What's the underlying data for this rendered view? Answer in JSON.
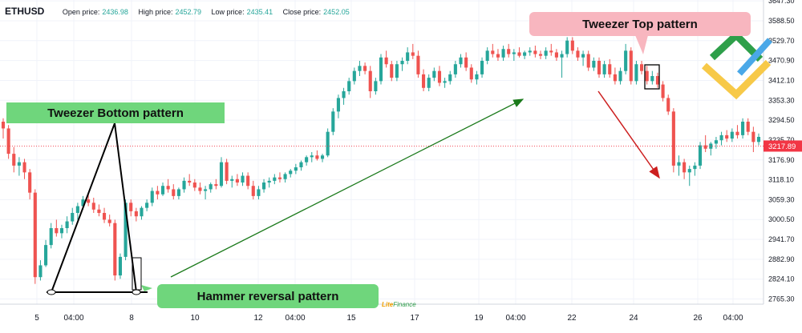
{
  "header": {
    "symbol": "ETHUSD",
    "open_label": "Open price:",
    "open_value": "2436.98",
    "high_label": "High price:",
    "high_value": "2452.79",
    "low_label": "Low price:",
    "low_value": "2435.41",
    "close_label": "Close price:",
    "close_value": "2452.05"
  },
  "callouts": {
    "tweezer_bottom": "Tweezer Bottom pattern",
    "hammer": "Hammer reversal pattern",
    "tweezer_top": "Tweezer Top pattern"
  },
  "brand": {
    "part1": "Lite",
    "part2": "Finance"
  },
  "colors": {
    "up": "#26a69a",
    "down": "#ef5350",
    "current_price_bg": "#f23645",
    "arrow_up": "#1b7a1b",
    "arrow_down": "#cc1f1f"
  },
  "chart_data": {
    "type": "candlestick",
    "ylim": [
      2750,
      3650
    ],
    "y_ticks": [
      "3647.30",
      "3588.50",
      "3529.70",
      "3470.90",
      "3412.10",
      "3353.30",
      "3294.50",
      "3235.70",
      "3176.90",
      "3118.10",
      "3059.30",
      "3000.50",
      "2941.70",
      "2882.90",
      "2824.10",
      "2765.30"
    ],
    "x_ticks": [
      "5",
      "04:00",
      "8",
      "10",
      "12",
      "04:00",
      "15",
      "17",
      "19",
      "04:00",
      "22",
      "24",
      "26",
      "04:00"
    ],
    "current_price": "3217.89",
    "candles": [
      [
        3290,
        3300,
        3240,
        3270
      ],
      [
        3270,
        3280,
        3180,
        3195
      ],
      [
        3195,
        3215,
        3140,
        3160
      ],
      [
        3160,
        3185,
        3130,
        3170
      ],
      [
        3170,
        3180,
        3120,
        3140
      ],
      [
        3140,
        3150,
        3060,
        3080
      ],
      [
        3080,
        3090,
        2810,
        2830
      ],
      [
        2830,
        2880,
        2820,
        2865
      ],
      [
        2865,
        2940,
        2860,
        2925
      ],
      [
        2925,
        2990,
        2915,
        2975
      ],
      [
        2975,
        3000,
        2950,
        2960
      ],
      [
        2960,
        2985,
        2945,
        2975
      ],
      [
        2975,
        3010,
        2960,
        2995
      ],
      [
        2995,
        3035,
        2985,
        3020
      ],
      [
        3020,
        3050,
        3000,
        3040
      ],
      [
        3040,
        3070,
        3030,
        3060
      ],
      [
        3060,
        3080,
        3040,
        3050
      ],
      [
        3050,
        3065,
        3020,
        3030
      ],
      [
        3030,
        3045,
        3010,
        3020
      ],
      [
        3020,
        3035,
        2990,
        3000
      ],
      [
        3000,
        3015,
        2980,
        2990
      ],
      [
        2990,
        3000,
        2820,
        2835
      ],
      [
        2835,
        2900,
        2825,
        2890
      ],
      [
        2890,
        3060,
        2880,
        3050
      ],
      [
        3050,
        3060,
        3010,
        3025
      ],
      [
        3025,
        3035,
        2995,
        3010
      ],
      [
        3010,
        3040,
        3000,
        3035
      ],
      [
        3035,
        3060,
        3025,
        3050
      ],
      [
        3050,
        3095,
        3040,
        3085
      ],
      [
        3085,
        3100,
        3060,
        3075
      ],
      [
        3075,
        3110,
        3070,
        3100
      ],
      [
        3100,
        3120,
        3080,
        3090
      ],
      [
        3090,
        3105,
        3060,
        3070
      ],
      [
        3070,
        3095,
        3060,
        3090
      ],
      [
        3090,
        3125,
        3080,
        3115
      ],
      [
        3115,
        3135,
        3100,
        3110
      ],
      [
        3110,
        3120,
        3085,
        3095
      ],
      [
        3095,
        3110,
        3075,
        3085
      ],
      [
        3085,
        3100,
        3060,
        3090
      ],
      [
        3090,
        3110,
        3080,
        3105
      ],
      [
        3105,
        3120,
        3090,
        3100
      ],
      [
        3100,
        3185,
        3095,
        3170
      ],
      [
        3170,
        3180,
        3105,
        3115
      ],
      [
        3115,
        3130,
        3095,
        3120
      ],
      [
        3120,
        3135,
        3100,
        3110
      ],
      [
        3110,
        3140,
        3100,
        3130
      ],
      [
        3130,
        3140,
        3090,
        3100
      ],
      [
        3100,
        3115,
        3060,
        3070
      ],
      [
        3070,
        3100,
        3060,
        3090
      ],
      [
        3090,
        3120,
        3080,
        3110
      ],
      [
        3110,
        3125,
        3095,
        3115
      ],
      [
        3115,
        3135,
        3105,
        3125
      ],
      [
        3125,
        3140,
        3110,
        3120
      ],
      [
        3120,
        3140,
        3110,
        3135
      ],
      [
        3135,
        3150,
        3125,
        3145
      ],
      [
        3145,
        3165,
        3135,
        3155
      ],
      [
        3155,
        3175,
        3145,
        3170
      ],
      [
        3170,
        3190,
        3160,
        3185
      ],
      [
        3185,
        3200,
        3170,
        3190
      ],
      [
        3190,
        3205,
        3175,
        3180
      ],
      [
        3180,
        3195,
        3170,
        3190
      ],
      [
        3190,
        3270,
        3185,
        3260
      ],
      [
        3260,
        3330,
        3250,
        3320
      ],
      [
        3320,
        3370,
        3300,
        3360
      ],
      [
        3360,
        3390,
        3340,
        3380
      ],
      [
        3380,
        3420,
        3370,
        3410
      ],
      [
        3410,
        3450,
        3400,
        3440
      ],
      [
        3440,
        3470,
        3425,
        3455
      ],
      [
        3455,
        3465,
        3430,
        3440
      ],
      [
        3440,
        3455,
        3360,
        3380
      ],
      [
        3380,
        3420,
        3370,
        3410
      ],
      [
        3410,
        3490,
        3400,
        3480
      ],
      [
        3480,
        3500,
        3450,
        3460
      ],
      [
        3460,
        3470,
        3410,
        3420
      ],
      [
        3420,
        3470,
        3410,
        3460
      ],
      [
        3460,
        3480,
        3440,
        3470
      ],
      [
        3470,
        3510,
        3460,
        3495
      ],
      [
        3495,
        3520,
        3475,
        3485
      ],
      [
        3485,
        3500,
        3420,
        3430
      ],
      [
        3430,
        3445,
        3380,
        3390
      ],
      [
        3390,
        3430,
        3380,
        3420
      ],
      [
        3420,
        3450,
        3410,
        3440
      ],
      [
        3440,
        3455,
        3395,
        3405
      ],
      [
        3405,
        3420,
        3390,
        3410
      ],
      [
        3410,
        3440,
        3400,
        3430
      ],
      [
        3430,
        3470,
        3420,
        3460
      ],
      [
        3460,
        3490,
        3450,
        3480
      ],
      [
        3480,
        3495,
        3440,
        3450
      ],
      [
        3450,
        3460,
        3405,
        3415
      ],
      [
        3415,
        3440,
        3400,
        3430
      ],
      [
        3430,
        3480,
        3420,
        3470
      ],
      [
        3470,
        3510,
        3460,
        3500
      ],
      [
        3500,
        3520,
        3480,
        3490
      ],
      [
        3490,
        3505,
        3470,
        3480
      ],
      [
        3480,
        3515,
        3470,
        3505
      ],
      [
        3505,
        3520,
        3480,
        3490
      ],
      [
        3490,
        3505,
        3470,
        3495
      ],
      [
        3495,
        3510,
        3480,
        3485
      ],
      [
        3485,
        3500,
        3475,
        3495
      ],
      [
        3495,
        3510,
        3485,
        3500
      ],
      [
        3500,
        3515,
        3480,
        3490
      ],
      [
        3490,
        3500,
        3475,
        3485
      ],
      [
        3485,
        3510,
        3475,
        3500
      ],
      [
        3500,
        3520,
        3485,
        3495
      ],
      [
        3495,
        3505,
        3470,
        3480
      ],
      [
        3480,
        3500,
        3420,
        3490
      ],
      [
        3490,
        3540,
        3480,
        3530
      ],
      [
        3530,
        3540,
        3490,
        3500
      ],
      [
        3500,
        3510,
        3470,
        3480
      ],
      [
        3480,
        3500,
        3455,
        3490
      ],
      [
        3490,
        3500,
        3440,
        3450
      ],
      [
        3450,
        3480,
        3440,
        3470
      ],
      [
        3470,
        3480,
        3420,
        3430
      ],
      [
        3430,
        3470,
        3420,
        3460
      ],
      [
        3460,
        3475,
        3420,
        3430
      ],
      [
        3430,
        3450,
        3400,
        3410
      ],
      [
        3410,
        3450,
        3400,
        3440
      ],
      [
        3440,
        3520,
        3430,
        3500
      ],
      [
        3500,
        3510,
        3400,
        3410
      ],
      [
        3410,
        3470,
        3400,
        3460
      ],
      [
        3460,
        3470,
        3430,
        3440
      ],
      [
        3440,
        3455,
        3400,
        3410
      ],
      [
        3410,
        3440,
        3400,
        3425
      ],
      [
        3425,
        3435,
        3390,
        3400
      ],
      [
        3400,
        3410,
        3350,
        3360
      ],
      [
        3360,
        3370,
        3310,
        3320
      ],
      [
        3320,
        3330,
        3140,
        3160
      ],
      [
        3160,
        3190,
        3130,
        3170
      ],
      [
        3170,
        3180,
        3120,
        3140
      ],
      [
        3140,
        3160,
        3100,
        3150
      ],
      [
        3150,
        3170,
        3130,
        3160
      ],
      [
        3160,
        3230,
        3150,
        3220
      ],
      [
        3220,
        3250,
        3200,
        3210
      ],
      [
        3210,
        3230,
        3190,
        3225
      ],
      [
        3225,
        3245,
        3210,
        3235
      ],
      [
        3235,
        3260,
        3220,
        3250
      ],
      [
        3250,
        3265,
        3230,
        3240
      ],
      [
        3240,
        3270,
        3230,
        3260
      ],
      [
        3260,
        3280,
        3240,
        3250
      ],
      [
        3250,
        3300,
        3240,
        3290
      ],
      [
        3290,
        3300,
        3250,
        3260
      ],
      [
        3260,
        3275,
        3200,
        3230
      ],
      [
        3230,
        3255,
        3220,
        3245
      ]
    ]
  }
}
